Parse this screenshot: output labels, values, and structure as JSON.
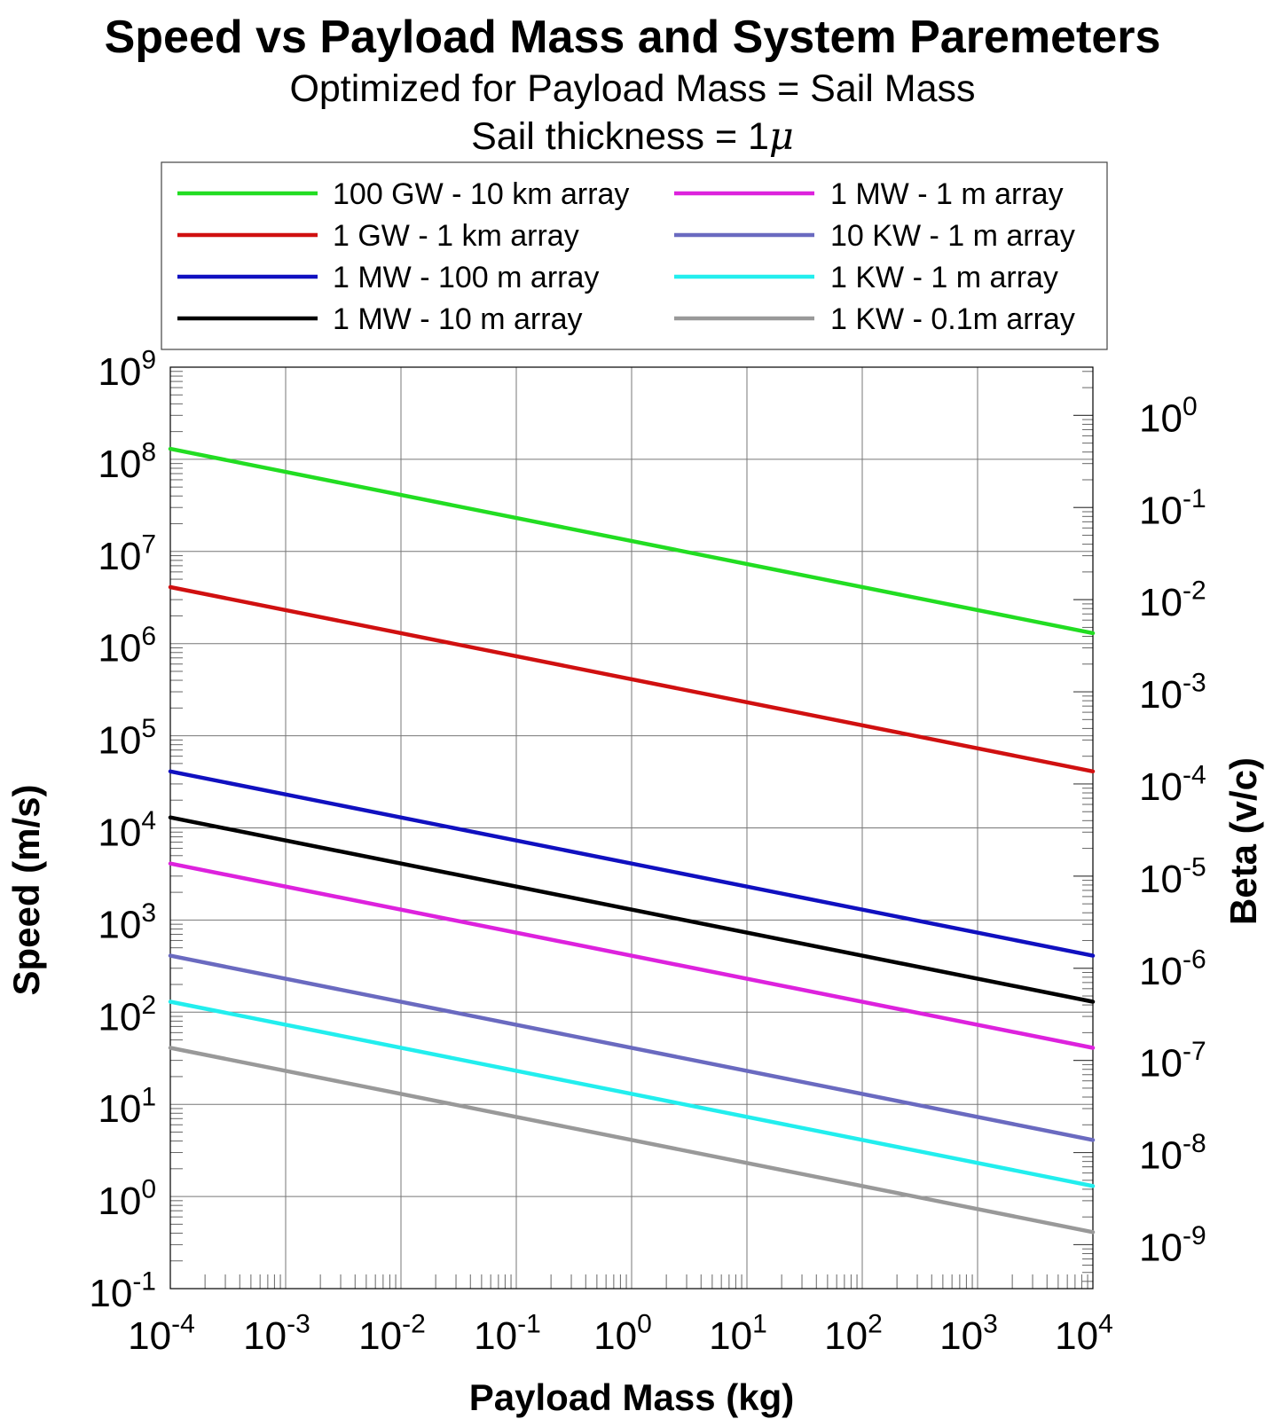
{
  "chart_data": {
    "type": "line",
    "title": "Speed vs Payload Mass and System Paremeters",
    "subtitle_lines": [
      "Optimized for Payload Mass = Sail Mass",
      "Sail thickness = 1"
    ],
    "subtitle_symbol": "μ",
    "xlabel": "Payload Mass (kg)",
    "ylabel": "Speed (m/s)",
    "y2label": "Beta (v/c)",
    "xscale": "log",
    "yscale": "log",
    "y2scale": "log",
    "xlim": [
      0.0001,
      10000
    ],
    "ylim": [
      0.1,
      1000000000
    ],
    "y2lim_note": "Beta = Speed / 299792458",
    "grid": true,
    "legend_placement": "top",
    "x_tick_exponents": [
      -4,
      -3,
      -2,
      -1,
      0,
      1,
      2,
      3,
      4
    ],
    "y_tick_exponents": [
      -1,
      0,
      1,
      2,
      3,
      4,
      5,
      6,
      7,
      8,
      9
    ],
    "y2_tick_exponents": [
      0,
      -1,
      -2,
      -3,
      -4,
      -5,
      -6,
      -7,
      -8,
      -9
    ],
    "tick_base": "10",
    "series": [
      {
        "name": "100 GW - 10 km array",
        "color": "#22dd22",
        "x": [
          0.0001,
          10000
        ],
        "y": [
          130000000,
          1300000
        ]
      },
      {
        "name": "1 GW - 1 km array",
        "color": "#d01010",
        "x": [
          0.0001,
          10000
        ],
        "y": [
          4100000,
          41000
        ]
      },
      {
        "name": "1 MW - 100 m array",
        "color": "#1010c0",
        "x": [
          0.0001,
          10000
        ],
        "y": [
          41000,
          410
        ]
      },
      {
        "name": "1 MW - 10 m array",
        "color": "#000000",
        "x": [
          0.0001,
          10000
        ],
        "y": [
          13000,
          130
        ]
      },
      {
        "name": "1 MW - 1 m array",
        "color": "#dd22dd",
        "x": [
          0.0001,
          10000
        ],
        "y": [
          4100,
          41
        ]
      },
      {
        "name": "10 KW - 1 m array",
        "color": "#6a6ac0",
        "x": [
          0.0001,
          10000
        ],
        "y": [
          410,
          4.1
        ]
      },
      {
        "name": "1 KW - 1 m array",
        "color": "#22eeee",
        "x": [
          0.0001,
          10000
        ],
        "y": [
          130,
          1.3
        ]
      },
      {
        "name": "1 KW - 0.1m array",
        "color": "#999999",
        "x": [
          0.0001,
          10000
        ],
        "y": [
          41,
          0.41
        ]
      }
    ]
  }
}
